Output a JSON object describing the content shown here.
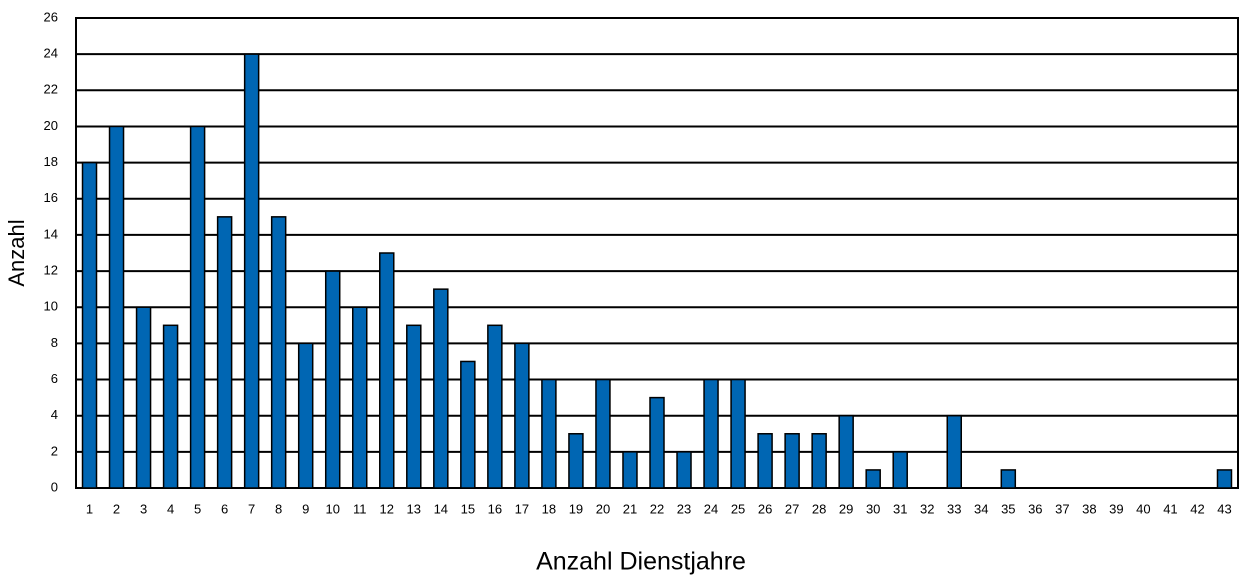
{
  "chart_data": {
    "type": "bar",
    "x_label": "Anzahl Dienstjahre",
    "y_label": "Anzahl",
    "categories": [
      "1",
      "2",
      "3",
      "4",
      "5",
      "6",
      "7",
      "8",
      "9",
      "10",
      "11",
      "12",
      "13",
      "14",
      "15",
      "16",
      "17",
      "18",
      "19",
      "20",
      "21",
      "22",
      "23",
      "24",
      "25",
      "26",
      "27",
      "28",
      "29",
      "30",
      "31",
      "32",
      "33",
      "34",
      "35",
      "36",
      "37",
      "38",
      "39",
      "40",
      "41",
      "42",
      "43"
    ],
    "values": [
      18,
      20,
      10,
      9,
      20,
      15,
      24,
      15,
      8,
      12,
      10,
      13,
      9,
      11,
      7,
      9,
      8,
      6,
      3,
      6,
      2,
      5,
      2,
      6,
      6,
      3,
      3,
      3,
      4,
      1,
      2,
      0,
      4,
      0,
      1,
      0,
      0,
      0,
      0,
      0,
      0,
      0,
      1
    ],
    "color": "#0066b3",
    "ylim": [
      0,
      26
    ],
    "yticks": [
      0,
      2,
      4,
      6,
      8,
      10,
      12,
      14,
      16,
      18,
      20,
      22,
      24,
      26
    ],
    "grid": true
  }
}
